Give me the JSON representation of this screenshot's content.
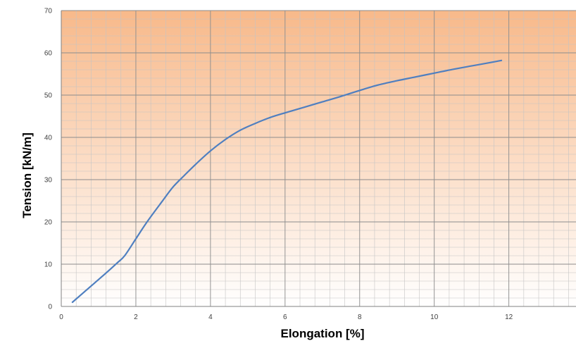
{
  "chart_data": {
    "type": "line",
    "title": "",
    "xlabel": "Elongation [%]",
    "ylabel": "Tension [kN/m]",
    "xlim": [
      0,
      13.8
    ],
    "ylim": [
      0,
      70
    ],
    "x_ticks": [
      0,
      2,
      4,
      6,
      8,
      10,
      12
    ],
    "y_ticks": [
      0,
      10,
      20,
      30,
      40,
      50,
      60,
      70
    ],
    "grid": true,
    "minor_grid": true,
    "legend": "none",
    "background_gradient": [
      "#f8b98a",
      "#ffffff"
    ],
    "series": [
      {
        "color": "#4f7fc0",
        "x": [
          0.3,
          0.6,
          0.9,
          1.2,
          1.5,
          1.7,
          2.0,
          2.3,
          2.7,
          3.0,
          3.3,
          3.6,
          4.0,
          4.4,
          4.8,
          5.2,
          5.6,
          6.0,
          6.5,
          7.0,
          7.5,
          8.0,
          8.5,
          9.0,
          9.5,
          10.0,
          10.5,
          11.0,
          11.5,
          11.8
        ],
        "y": [
          1.0,
          3.3,
          5.6,
          7.9,
          10.3,
          12.0,
          16.0,
          20.0,
          24.8,
          28.3,
          31.0,
          33.6,
          36.8,
          39.5,
          41.7,
          43.3,
          44.7,
          45.8,
          47.1,
          48.4,
          49.7,
          51.1,
          52.4,
          53.4,
          54.3,
          55.2,
          56.1,
          56.9,
          57.7,
          58.2
        ]
      }
    ]
  }
}
